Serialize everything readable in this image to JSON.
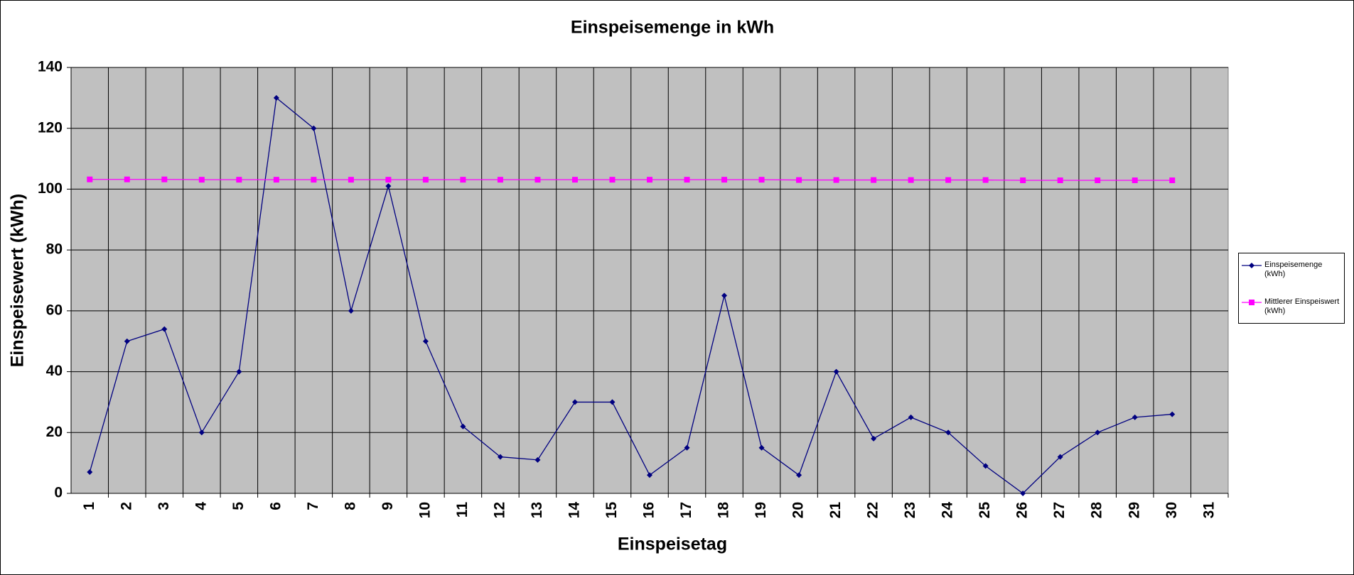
{
  "chart_data": {
    "type": "line",
    "title": "Einspeisemenge in kWh",
    "x_label": "Einspeisetag",
    "y_label": "Einspeisewert  (kWh)",
    "categories": [
      1,
      2,
      3,
      4,
      5,
      6,
      7,
      8,
      9,
      10,
      11,
      12,
      13,
      14,
      15,
      16,
      17,
      18,
      19,
      20,
      21,
      22,
      23,
      24,
      25,
      26,
      27,
      28,
      29,
      30,
      31
    ],
    "series": [
      {
        "name": "Einspeisemenge (kWh)",
        "color": "#000080",
        "marker": "diamond",
        "values": [
          7,
          50,
          54,
          20,
          40,
          130,
          120,
          60,
          101,
          50,
          22,
          12,
          11,
          30,
          30,
          6,
          15,
          65,
          15,
          6,
          40,
          18,
          25,
          20,
          9,
          0,
          12,
          20,
          25,
          26,
          null
        ]
      },
      {
        "name": "Mittlerer Einspeiswert (kWh)",
        "color": "#ff00ff",
        "marker": "square",
        "values": [
          103.2,
          103.2,
          103.2,
          103.1,
          103.1,
          103.1,
          103.1,
          103.1,
          103.1,
          103.1,
          103.1,
          103.1,
          103.1,
          103.1,
          103.1,
          103.1,
          103.1,
          103.1,
          103.1,
          103.0,
          103.0,
          103.0,
          103.0,
          103.0,
          103.0,
          102.9,
          102.9,
          102.9,
          102.9,
          102.9,
          null
        ]
      }
    ],
    "ylim": [
      0,
      140
    ],
    "yticks": [
      0,
      20,
      40,
      60,
      80,
      100,
      120,
      140
    ],
    "grid": true,
    "plot_background": "#c0c0c0",
    "legend": "right"
  }
}
